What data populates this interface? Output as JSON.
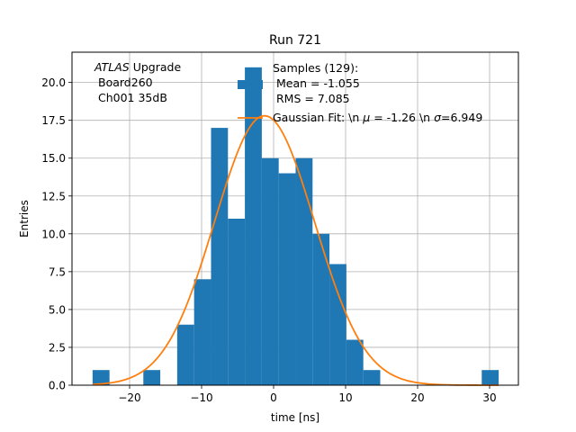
{
  "chart_data": {
    "type": "bar",
    "title": "Run 721",
    "xlabel": "time [ns]",
    "ylabel": "Entries",
    "xlim": [
      -28,
      34
    ],
    "ylim": [
      0,
      22
    ],
    "grid": true,
    "x_ticks": [
      -20,
      -10,
      0,
      10,
      20,
      30
    ],
    "x_tick_labels": [
      "−20",
      "−10",
      "0",
      "10",
      "20",
      "30"
    ],
    "y_ticks": [
      0,
      2.5,
      5,
      7.5,
      10,
      12.5,
      15,
      17.5,
      20
    ],
    "y_tick_labels": [
      "0.0",
      "2.5",
      "5.0",
      "7.5",
      "10.0",
      "12.5",
      "15.0",
      "17.5",
      "20.0"
    ],
    "histogram": {
      "name": "Samples (129)",
      "color": "#1f77b4",
      "bin_edges": [
        -25.14,
        -22.79,
        -20.44,
        -18.09,
        -15.74,
        -13.39,
        -11.04,
        -8.69,
        -6.34,
        -3.99,
        -1.64,
        0.71,
        3.06,
        5.41,
        7.76,
        10.11,
        12.46,
        14.81,
        17.16,
        19.51,
        21.86,
        24.21,
        26.56,
        28.91,
        31.26
      ],
      "counts": [
        1,
        0,
        0,
        1,
        0,
        4,
        7,
        17,
        11,
        21,
        15,
        14,
        15,
        10,
        8,
        3,
        1,
        0,
        0,
        0,
        0,
        0,
        0,
        1
      ]
    },
    "gaussian_fit": {
      "name": "Gaussian Fit",
      "color": "#ff7f0e",
      "mu": -1.26,
      "sigma": 6.949,
      "amplitude": 17.8,
      "x_range": [
        -25.14,
        31.26
      ]
    },
    "annotation": {
      "italic": "ATLAS",
      "rest": " Upgrade",
      "line2": "Board260",
      "line3": "Ch001 35dB"
    },
    "legend": {
      "placement": "top-right",
      "hist_lines": [
        "Samples (129):",
        "Mean = -1.055",
        "RMS = 7.085"
      ],
      "fit_prefix": "Gaussian Fit: \\n ",
      "mu_symbol": "μ",
      "mu_text": " = -1.26 \\n ",
      "sigma_symbol": "σ",
      "sigma_text": "=6.949"
    }
  }
}
